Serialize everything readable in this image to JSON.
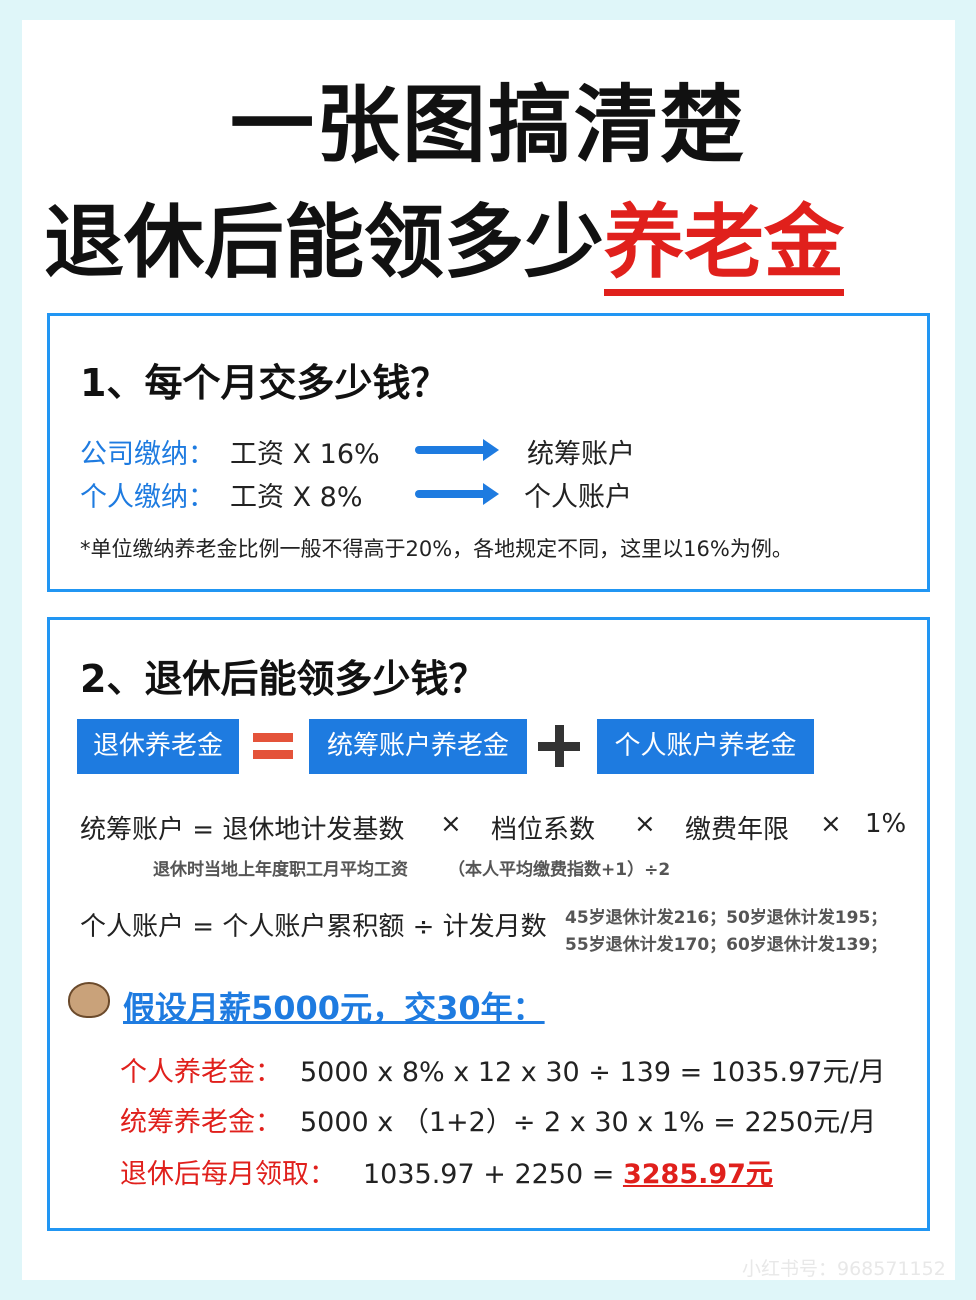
{
  "title": {
    "line1": "一张图搞清楚",
    "line2_plain": "退休后能领多少",
    "line2_highlight": "养老金"
  },
  "section1": {
    "heading": "1、每个月交多少钱？",
    "rows": [
      {
        "label": "公司缴纳：",
        "formula": "工资 X 16%",
        "target": "统筹账户"
      },
      {
        "label": "个人缴纳：",
        "formula": "工资 X 8%",
        "target": "个人账户"
      }
    ],
    "note": "*单位缴纳养老金比例一般不得高于20%，各地规定不同，这里以16%为例。"
  },
  "section2": {
    "heading": "2、退休后能领多少钱？",
    "equation": {
      "total": "退休养老金",
      "pooled": "统筹账户养老金",
      "personal": "个人账户养老金"
    },
    "pooled_formula": {
      "lhs": "统筹账户 = 退休地计发基数",
      "x1": "×",
      "factor2": "档位系数",
      "x2": "×",
      "factor3": "缴费年限",
      "x3": "×",
      "factor4": "1%",
      "note1": "退休时当地上年度职工月平均工资",
      "note2": "（本人平均缴费指数+1）÷2"
    },
    "personal_formula": {
      "text": "个人账户 = 个人账户累积额 ÷ 计发月数",
      "note_line1": "45岁退休计发216；50岁退休计发195；",
      "note_line2": "55岁退休计发170；60岁退休计发139；"
    },
    "example": {
      "heading": "假设月薪5000元，交30年：",
      "personal_label": "个人养老金：",
      "personal_calc": "5000 x 8% x 12 x 30 ÷ 139 = 1035.97元/月",
      "pooled_label": "统筹养老金：",
      "pooled_calc": "5000 x （1+2）÷ 2 x 30 x 1% = 2250元/月",
      "total_label": "退休后每月领取：",
      "total_calc": "1035.97 + 2250 = ",
      "total_result": "3285.97元"
    }
  },
  "watermark": "小红书号：968571152",
  "colors": {
    "accent": "#1e7be0",
    "highlight": "#e0201c",
    "background": "#dff6f9"
  }
}
